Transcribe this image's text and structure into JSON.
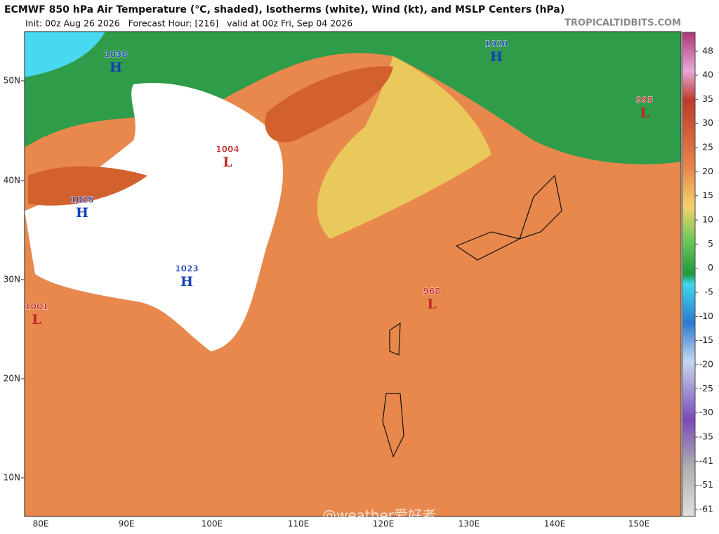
{
  "header": {
    "title": "ECMWF 850 hPa Air Temperature (°C, shaded), Isotherms (white), Wind (kt), and MSLP Centers (hPa)",
    "subtitle": "Init: 00z Aug 26 2026   Forecast Hour: [216]   valid at 00z Fri, Sep 04 2026",
    "site": "TROPICALTIDBITS.COM"
  },
  "latitude_labels": [
    "50N",
    "40N",
    "30N",
    "20N",
    "10N"
  ],
  "longitude_labels": [
    "80E",
    "90E",
    "100E",
    "110E",
    "120E",
    "130E",
    "140E",
    "150E"
  ],
  "pressure_centers": [
    {
      "value": "1030",
      "symbol": "H"
    },
    {
      "value": "1020",
      "symbol": "H"
    },
    {
      "value": "995",
      "symbol": "L"
    },
    {
      "value": "1004",
      "symbol": "L"
    },
    {
      "value": "1025",
      "symbol": "H"
    },
    {
      "value": "1023",
      "symbol": "H"
    },
    {
      "value": "1001",
      "symbol": "L"
    },
    {
      "value": "968",
      "symbol": "L"
    }
  ],
  "colorbar_labels": [
    "48",
    "40",
    "35",
    "30",
    "25",
    "20",
    "15",
    "10",
    "5",
    "0",
    "-5",
    "-10",
    "-15",
    "-20",
    "-25",
    "-30",
    "-35",
    "-41",
    "-51",
    "-61"
  ],
  "watermark": "@weather爱好者"
}
